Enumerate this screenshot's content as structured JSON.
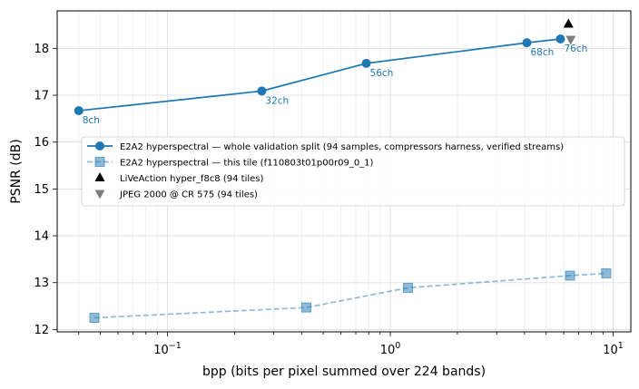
{
  "chart_data": {
    "type": "line",
    "title": "",
    "xlabel": "bpp (bits per pixel summed over 224 bands)",
    "ylabel": "PSNR (dB)",
    "xscale": "log",
    "xlim": [
      0.032,
      12.0
    ],
    "ylim": [
      11.95,
      18.8
    ],
    "xticks": [
      {
        "value": 0.1,
        "base": "10",
        "exp": "−1"
      },
      {
        "value": 1,
        "base": "10",
        "exp": "0"
      },
      {
        "value": 10,
        "base": "10",
        "exp": "1"
      }
    ],
    "yticks": [
      12,
      13,
      14,
      15,
      16,
      17,
      18
    ],
    "grid": true,
    "legend_position": "center-right",
    "series": [
      {
        "name": "E2A2 hyperspectral — whole validation split (94 samples, compressors harness, verified streams)",
        "kind": "line",
        "marker": "circle",
        "dash": "solid",
        "color": "#1f77b4",
        "x": [
          0.04,
          0.265,
          0.78,
          4.1,
          5.8
        ],
        "y": [
          16.67,
          17.09,
          17.68,
          18.12,
          18.2
        ],
        "labels": [
          "8ch",
          "32ch",
          "56ch",
          "68ch",
          "76ch"
        ]
      },
      {
        "name": "E2A2 hyperspectral — this tile (f110803t01p00r09_0_1)",
        "kind": "line",
        "marker": "square",
        "dash": "dashed",
        "color": "#1f77b4",
        "opacity": 0.5,
        "x": [
          0.047,
          0.42,
          1.2,
          6.4,
          9.3
        ],
        "y": [
          12.25,
          12.47,
          12.89,
          13.15,
          13.2
        ],
        "labels": []
      },
      {
        "name": "LiVeAction hyper_f8c8 (94 tiles)",
        "kind": "point",
        "marker": "triangle-up",
        "color": "#000000",
        "x": [
          6.3
        ],
        "y": [
          18.52
        ]
      },
      {
        "name": "JPEG 2000 @ CR 575 (94 tiles)",
        "kind": "point",
        "marker": "triangle-down",
        "color": "#7f7f7f",
        "x": [
          6.45
        ],
        "y": [
          18.19
        ]
      }
    ]
  }
}
